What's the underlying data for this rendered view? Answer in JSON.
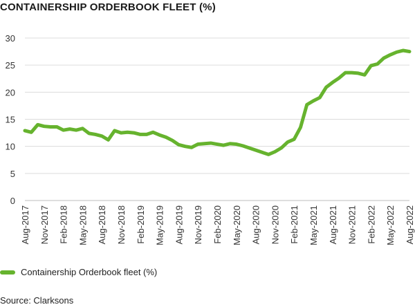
{
  "chart_data": {
    "type": "line",
    "title": "CONTAINERSHIP ORDERBOOK FLEET (%)",
    "source": "Source: Clarksons",
    "ylim": [
      0,
      30
    ],
    "yticks": [
      0,
      5,
      10,
      15,
      20,
      25,
      30
    ],
    "grid": "horizontal",
    "legend_position": "bottom-left",
    "x_tick_labels": [
      "Aug-2017",
      "Nov-2017",
      "Feb-2018",
      "May-2018",
      "Aug-2018",
      "Nov-2018",
      "Feb-2019",
      "May-2019",
      "Aug-2019",
      "Nov-2019",
      "Feb-2020",
      "May-2020",
      "Aug-2020",
      "Nov-2020",
      "Feb-2021",
      "May-2021",
      "Aug-2021",
      "Nov-2021",
      "Feb-2022",
      "May-2022",
      "Aug-2022"
    ],
    "series": [
      {
        "name": "Containership Orderbook fleet (%)",
        "color": "#66b32e",
        "x": [
          "Aug-2017",
          "Sep-2017",
          "Oct-2017",
          "Nov-2017",
          "Dec-2017",
          "Jan-2018",
          "Feb-2018",
          "Mar-2018",
          "Apr-2018",
          "May-2018",
          "Jun-2018",
          "Jul-2018",
          "Aug-2018",
          "Sep-2018",
          "Oct-2018",
          "Nov-2018",
          "Dec-2018",
          "Jan-2019",
          "Feb-2019",
          "Mar-2019",
          "Apr-2019",
          "May-2019",
          "Jun-2019",
          "Jul-2019",
          "Aug-2019",
          "Sep-2019",
          "Oct-2019",
          "Nov-2019",
          "Dec-2019",
          "Jan-2020",
          "Feb-2020",
          "Mar-2020",
          "Apr-2020",
          "May-2020",
          "Jun-2020",
          "Jul-2020",
          "Aug-2020",
          "Sep-2020",
          "Oct-2020",
          "Nov-2020",
          "Dec-2020",
          "Jan-2021",
          "Feb-2021",
          "Mar-2021",
          "Apr-2021",
          "May-2021",
          "Jun-2021",
          "Jul-2021",
          "Aug-2021",
          "Sep-2021",
          "Oct-2021",
          "Nov-2021",
          "Dec-2021",
          "Jan-2022",
          "Feb-2022",
          "Mar-2022",
          "Apr-2022",
          "May-2022",
          "Jun-2022",
          "Jul-2022",
          "Aug-2022"
        ],
        "values": [
          12.9,
          12.6,
          14.0,
          13.7,
          13.6,
          13.6,
          13.0,
          13.2,
          13.0,
          13.3,
          12.4,
          12.2,
          11.9,
          11.2,
          12.9,
          12.5,
          12.6,
          12.5,
          12.2,
          12.2,
          12.6,
          12.1,
          11.7,
          11.1,
          10.3,
          10.0,
          9.8,
          10.4,
          10.5,
          10.6,
          10.4,
          10.2,
          10.5,
          10.4,
          10.1,
          9.7,
          9.3,
          8.9,
          8.5,
          9.0,
          9.7,
          10.8,
          11.3,
          13.5,
          17.7,
          18.4,
          19.0,
          20.9,
          21.8,
          22.6,
          23.6,
          23.6,
          23.5,
          23.2,
          24.9,
          25.2,
          26.3,
          26.9,
          27.4,
          27.7,
          27.5
        ]
      }
    ]
  },
  "legend": {
    "label": "Containership Orderbook fleet (%)",
    "color": "#66b32e"
  }
}
